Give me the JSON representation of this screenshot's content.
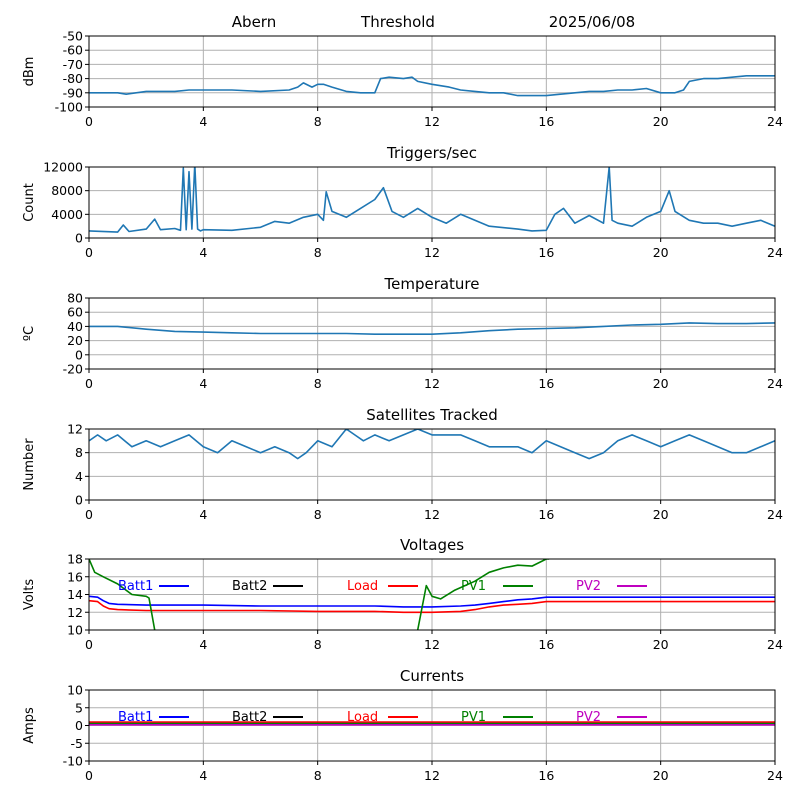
{
  "header": {
    "station": "Abern",
    "mode": "Threshold",
    "date": "2025/06/08"
  },
  "colors": {
    "data": "#1f77b4",
    "batt1": "#0000ff",
    "batt2": "#000000",
    "load": "#ff0000",
    "pv1": "#008000",
    "pv2": "#bf00bf",
    "grid": "#b0b0b0"
  },
  "chart_data": [
    {
      "type": "line",
      "title": "",
      "ylabel": "dBm",
      "xlim": [
        0,
        24
      ],
      "ylim": [
        -100,
        -50
      ],
      "xticks": [
        0,
        4,
        8,
        12,
        16,
        20,
        24
      ],
      "yticks": [
        -100,
        -90,
        -80,
        -70,
        -60,
        -50
      ],
      "grid": true,
      "series": [
        {
          "color": "#1f77b4",
          "x": [
            0,
            0.5,
            1,
            1.3,
            2,
            2.3,
            3,
            3.5,
            4,
            5,
            6,
            7,
            7.3,
            7.5,
            7.8,
            8,
            8.2,
            8.5,
            9,
            9.5,
            10,
            10.2,
            10.5,
            11,
            11.3,
            11.5,
            12,
            12.3,
            12.6,
            13,
            13.5,
            14,
            14.5,
            15,
            15.5,
            16,
            16.5,
            17,
            17.5,
            18,
            18.5,
            19,
            19.5,
            20,
            20.5,
            20.8,
            21,
            21.5,
            22,
            22.5,
            23,
            23.5,
            24
          ],
          "y": [
            -90,
            -90,
            -90,
            -91,
            -89,
            -89,
            -89,
            -88,
            -88,
            -88,
            -89,
            -88,
            -86,
            -83,
            -86,
            -84,
            -84,
            -86,
            -89,
            -90,
            -90,
            -80,
            -79,
            -80,
            -79,
            -82,
            -84,
            -85,
            -86,
            -88,
            -89,
            -90,
            -90,
            -92,
            -92,
            -92,
            -91,
            -90,
            -89,
            -89,
            -88,
            -88,
            -87,
            -90,
            -90,
            -88,
            -82,
            -80,
            -80,
            -79,
            -78,
            -78,
            -78
          ]
        }
      ]
    },
    {
      "type": "line",
      "title": "Triggers/sec",
      "ylabel": "Count",
      "xlim": [
        0,
        24
      ],
      "ylim": [
        0,
        12000
      ],
      "xticks": [
        0,
        4,
        8,
        12,
        16,
        20,
        24
      ],
      "yticks": [
        0,
        4000,
        8000,
        12000
      ],
      "grid": true,
      "series": [
        {
          "color": "#1f77b4",
          "x": [
            0,
            1,
            1.2,
            1.4,
            2,
            2.3,
            2.5,
            3,
            3.2,
            3.3,
            3.4,
            3.5,
            3.6,
            3.7,
            3.8,
            3.9,
            4,
            5,
            6,
            6.5,
            7,
            7.5,
            8,
            8.2,
            8.3,
            8.5,
            9,
            9.5,
            10,
            10.3,
            10.6,
            11,
            11.5,
            12,
            12.5,
            13,
            13.5,
            14,
            15,
            15.5,
            16,
            16.3,
            16.6,
            17,
            17.5,
            18,
            18.2,
            18.3,
            18.5,
            19,
            19.5,
            20,
            20.3,
            20.5,
            21,
            21.5,
            22,
            22.5,
            23,
            23.5,
            24
          ],
          "y": [
            1200,
            1000,
            2200,
            1100,
            1500,
            3200,
            1400,
            1600,
            1300,
            11800,
            1400,
            11200,
            1500,
            12500,
            1500,
            1200,
            1400,
            1300,
            1800,
            2800,
            2500,
            3500,
            4000,
            3000,
            7800,
            4500,
            3500,
            5000,
            6500,
            8500,
            4500,
            3500,
            5000,
            3500,
            2500,
            4000,
            3000,
            2000,
            1500,
            1200,
            1300,
            4000,
            5000,
            2500,
            3800,
            2500,
            12000,
            3000,
            2500,
            2000,
            3500,
            4500,
            8000,
            4500,
            3000,
            2500,
            2500,
            2000,
            2500,
            3000,
            2000
          ]
        }
      ]
    },
    {
      "type": "line",
      "title": "Temperature",
      "ylabel": "ºC",
      "xlim": [
        0,
        24
      ],
      "ylim": [
        -20,
        80
      ],
      "xticks": [
        0,
        4,
        8,
        12,
        16,
        20,
        24
      ],
      "yticks": [
        -20,
        0,
        20,
        40,
        60,
        80
      ],
      "grid": true,
      "series": [
        {
          "color": "#1f77b4",
          "x": [
            0,
            1,
            2,
            3,
            4,
            5,
            6,
            7,
            8,
            9,
            10,
            11,
            12,
            13,
            14,
            15,
            16,
            17,
            18,
            19,
            20,
            21,
            22,
            23,
            24
          ],
          "y": [
            40,
            40,
            36,
            33,
            32,
            31,
            30,
            30,
            30,
            30,
            29,
            29,
            29,
            31,
            34,
            36,
            37,
            38,
            40,
            42,
            43,
            45,
            44,
            44,
            45
          ]
        }
      ]
    },
    {
      "type": "line",
      "title": "Satellites Tracked",
      "ylabel": "Number",
      "xlim": [
        0,
        24
      ],
      "ylim": [
        0,
        12
      ],
      "xticks": [
        0,
        4,
        8,
        12,
        16,
        20,
        24
      ],
      "yticks": [
        0,
        4,
        8,
        12
      ],
      "grid": true,
      "series": [
        {
          "color": "#1f77b4",
          "x": [
            0,
            0.3,
            0.6,
            1,
            1.5,
            2,
            2.5,
            3,
            3.5,
            4,
            4.5,
            5,
            5.5,
            6,
            6.5,
            7,
            7.3,
            7.6,
            8,
            8.5,
            9,
            9.3,
            9.6,
            10,
            10.5,
            11,
            11.5,
            12,
            12.5,
            13,
            13.5,
            14,
            14.5,
            15,
            15.5,
            16,
            16.5,
            17,
            17.5,
            18,
            18.5,
            19,
            19.5,
            20,
            20.5,
            21,
            21.5,
            22,
            22.5,
            23,
            23.5,
            24
          ],
          "y": [
            10,
            11,
            10,
            11,
            9,
            10,
            9,
            10,
            11,
            9,
            8,
            10,
            9,
            8,
            9,
            8,
            7,
            8,
            10,
            9,
            12,
            11,
            10,
            11,
            10,
            11,
            12,
            11,
            11,
            11,
            10,
            9,
            9,
            9,
            8,
            10,
            9,
            8,
            7,
            8,
            10,
            11,
            10,
            9,
            10,
            11,
            10,
            9,
            8,
            8,
            9,
            10
          ]
        }
      ]
    },
    {
      "type": "line",
      "title": "Voltages",
      "ylabel": "Volts",
      "xlim": [
        0,
        24
      ],
      "ylim": [
        10,
        18
      ],
      "xticks": [
        0,
        4,
        8,
        12,
        16,
        20,
        24
      ],
      "yticks": [
        10,
        12,
        14,
        16,
        18
      ],
      "grid": true,
      "legend_position": "top, single row",
      "series": [
        {
          "name": "Batt1",
          "color": "#0000ff",
          "x": [
            0,
            0.3,
            0.5,
            0.7,
            1,
            2,
            4,
            6,
            8,
            10,
            11,
            12,
            13,
            13.5,
            14,
            14.5,
            15,
            15.5,
            16,
            17,
            18,
            20,
            22,
            24
          ],
          "y": [
            13.8,
            13.7,
            13.3,
            13.0,
            12.9,
            12.8,
            12.8,
            12.7,
            12.7,
            12.7,
            12.6,
            12.6,
            12.7,
            12.8,
            13.0,
            13.2,
            13.4,
            13.5,
            13.7,
            13.7,
            13.7,
            13.7,
            13.7,
            13.7
          ]
        },
        {
          "name": "Batt2",
          "color": "#000000",
          "x": [],
          "y": []
        },
        {
          "name": "Load",
          "color": "#ff0000",
          "x": [
            0,
            0.3,
            0.5,
            0.7,
            1,
            2,
            4,
            6,
            8,
            10,
            11,
            12,
            13,
            13.5,
            14,
            14.5,
            15,
            15.5,
            16,
            17,
            18,
            20,
            22,
            24
          ],
          "y": [
            13.3,
            13.2,
            12.7,
            12.4,
            12.3,
            12.2,
            12.2,
            12.2,
            12.1,
            12.1,
            12.0,
            12.0,
            12.1,
            12.3,
            12.6,
            12.8,
            12.9,
            13.0,
            13.2,
            13.2,
            13.2,
            13.2,
            13.2,
            13.2
          ]
        },
        {
          "name": "PV1",
          "color": "#008000",
          "x": [
            0,
            0.2,
            0.5,
            1,
            1.5,
            2,
            2.1,
            2.3,
            2.5,
            11.2,
            11.5,
            11.8,
            12,
            12.3,
            12.8,
            13.5,
            14,
            14.5,
            15,
            15.5,
            16,
            16.1
          ],
          "y": [
            18,
            16.5,
            16.0,
            15.2,
            14.0,
            13.8,
            13.6,
            10,
            8,
            8,
            10,
            15.0,
            13.8,
            13.5,
            14.5,
            15.5,
            16.5,
            17.0,
            17.3,
            17.2,
            18,
            18
          ]
        },
        {
          "name": "PV2",
          "color": "#bf00bf",
          "x": [],
          "y": []
        }
      ]
    },
    {
      "type": "line",
      "title": "Currents",
      "ylabel": "Amps",
      "xlim": [
        0,
        24
      ],
      "ylim": [
        -10,
        10
      ],
      "xticks": [
        0,
        4,
        8,
        12,
        16,
        20,
        24
      ],
      "yticks": [
        -10,
        -5,
        0,
        5,
        10
      ],
      "grid": true,
      "legend_position": "top, single row",
      "series": [
        {
          "name": "Batt1",
          "color": "#0000ff",
          "x": [
            0,
            24
          ],
          "y": [
            0.3,
            0.3
          ]
        },
        {
          "name": "Batt2",
          "color": "#000000",
          "x": [
            0,
            24
          ],
          "y": [
            0.6,
            0.6
          ]
        },
        {
          "name": "Load",
          "color": "#ff0000",
          "x": [
            0,
            24
          ],
          "y": [
            1.0,
            1.0
          ]
        },
        {
          "name": "PV1",
          "color": "#008000",
          "x": [
            0,
            24
          ],
          "y": [
            0.5,
            0.5
          ]
        },
        {
          "name": "PV2",
          "color": "#bf00bf",
          "x": [
            0,
            24
          ],
          "y": [
            0.2,
            0.2
          ]
        }
      ]
    }
  ]
}
